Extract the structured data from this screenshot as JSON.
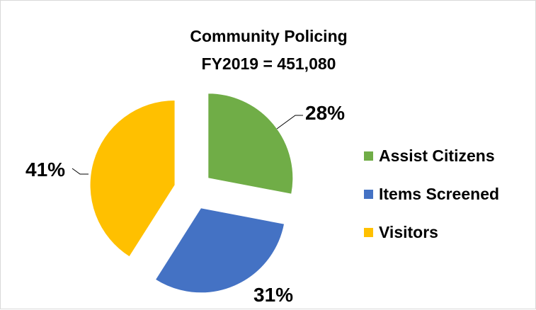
{
  "chart_data": {
    "type": "pie",
    "title": [
      "Community Policing",
      "FY2019 = 451,080"
    ],
    "slices": [
      {
        "label": "Assist Citizens",
        "percent": 28,
        "value_label": "28%",
        "color": "#70ad47"
      },
      {
        "label": "Items Screened",
        "percent": 31,
        "value_label": "31%",
        "color": "#4472c4"
      },
      {
        "label": "Visitors",
        "percent": 41,
        "value_label": "41%",
        "color": "#ffc000"
      }
    ],
    "exploded": true,
    "legend_placement": "right"
  }
}
